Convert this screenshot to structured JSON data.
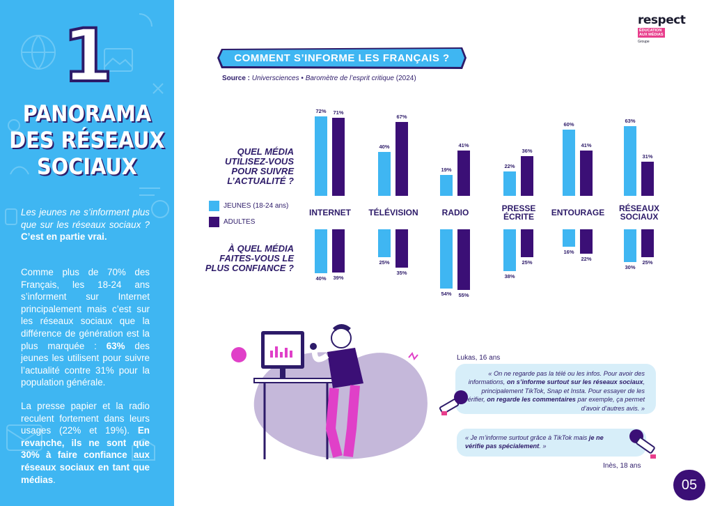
{
  "left_panel": {
    "number": "1",
    "title_lines": [
      "PANORAMA",
      "DES RÉSEAUX",
      "SOCIAUX"
    ],
    "intro": "Les jeunes ne s’informent plus que sur les réseaux sociaux ?",
    "intro_bold": "C’est en partie vrai.",
    "p2_text": "Comme plus de 70% des Français, les 18-24 ans s’informent sur Internet principalement mais c’est sur les réseaux sociaux que la différence de génération est la plus marquée :",
    "p2_bold": "63%",
    "p2_end": "des jeunes les utilisent pour suivre l’actualité contre 31% pour la population générale.",
    "p3_text": "La presse papier et la radio reculent fortement dans leurs usages (22% et 19%).",
    "p3_bold": "En revanche, ils ne sont que 30% à faire confiance aux réseaux sociaux en tant que médias",
    "p3_end": "."
  },
  "logo": {
    "word": "respect",
    "tag_line1": "ÉDUCATION",
    "tag_line2": "AUX MÉDIAS",
    "group": "Groupe"
  },
  "banner": {
    "title": "COMMENT S’INFORME LES FRANÇAIS ?"
  },
  "source": {
    "label": "Source :",
    "org": "Universciences",
    "bullet": "•",
    "study": "Baromètre de l’esprit critique",
    "year": "(2024)"
  },
  "question1": "QUEL MÉDIA UTILISEZ-VOUS POUR SUIVRE L’ACTUALITÉ ?",
  "question2": "À QUEL MÉDIA FAITES-VOUS LE PLUS CONFIANCE ?",
  "legend": {
    "young": "JEUNES",
    "young_range": "(18-24 ans)",
    "adults": "ADULTES"
  },
  "colors": {
    "young": "#3fb6f2",
    "adults": "#3b0f76",
    "text": "#2d1b69",
    "accent_pink": "#e83e8c"
  },
  "chart_data": [
    {
      "type": "bar",
      "title": "QUEL MÉDIA UTILISEZ-VOUS POUR SUIVRE L’ACTUALITÉ ?",
      "categories": [
        "INTERNET",
        "TÉLÉVISION",
        "RADIO",
        "PRESSE ÉCRITE",
        "ENTOURAGE",
        "RÉSEAUX SOCIAUX"
      ],
      "series": [
        {
          "name": "JEUNES (18-24 ans)",
          "values": [
            72,
            40,
            19,
            22,
            60,
            63
          ]
        },
        {
          "name": "ADULTES",
          "values": [
            71,
            67,
            41,
            36,
            41,
            31
          ]
        }
      ],
      "unit": "%"
    },
    {
      "type": "bar",
      "title": "À QUEL MÉDIA FAITES-VOUS LE PLUS CONFIANCE ?",
      "categories": [
        "INTERNET",
        "TÉLÉVISION",
        "RADIO",
        "PRESSE ÉCRITE",
        "ENTOURAGE",
        "RÉSEAUX SOCIAUX"
      ],
      "series": [
        {
          "name": "JEUNES (18-24 ans)",
          "values": [
            40,
            25,
            54,
            38,
            16,
            30
          ]
        },
        {
          "name": "ADULTES",
          "values": [
            39,
            35,
            55,
            25,
            22,
            25
          ]
        }
      ],
      "unit": "%"
    }
  ],
  "categories_display": [
    [
      "INTERNET"
    ],
    [
      "TÉLÉVISION"
    ],
    [
      "RADIO"
    ],
    [
      "PRESSE",
      "ÉCRITE"
    ],
    [
      "ENTOURAGE"
    ],
    [
      "RÉSEAUX",
      "SOCIAUX"
    ]
  ],
  "quote_lukas": {
    "name": "Lukas, 16 ans",
    "part1": "« On ne regarde pas la télé ou les infos. Pour avoir des informations,",
    "bold1": "on s’informe surtout sur les réseaux sociaux",
    "part2": ", principalement TikTok, Snap et Insta. Pour essayer de les vérifier,",
    "bold2": "on regarde les commentaires",
    "part3": "par exemple, ça permet d’avoir d’autres avis. »"
  },
  "quote_ines": {
    "name": "Inès, 18 ans",
    "part1": "« Je m’informe surtout grâce à TikTok mais",
    "bold1": "je ne vérifie pas spécialement",
    "part2": ". »"
  },
  "page_number": "05"
}
